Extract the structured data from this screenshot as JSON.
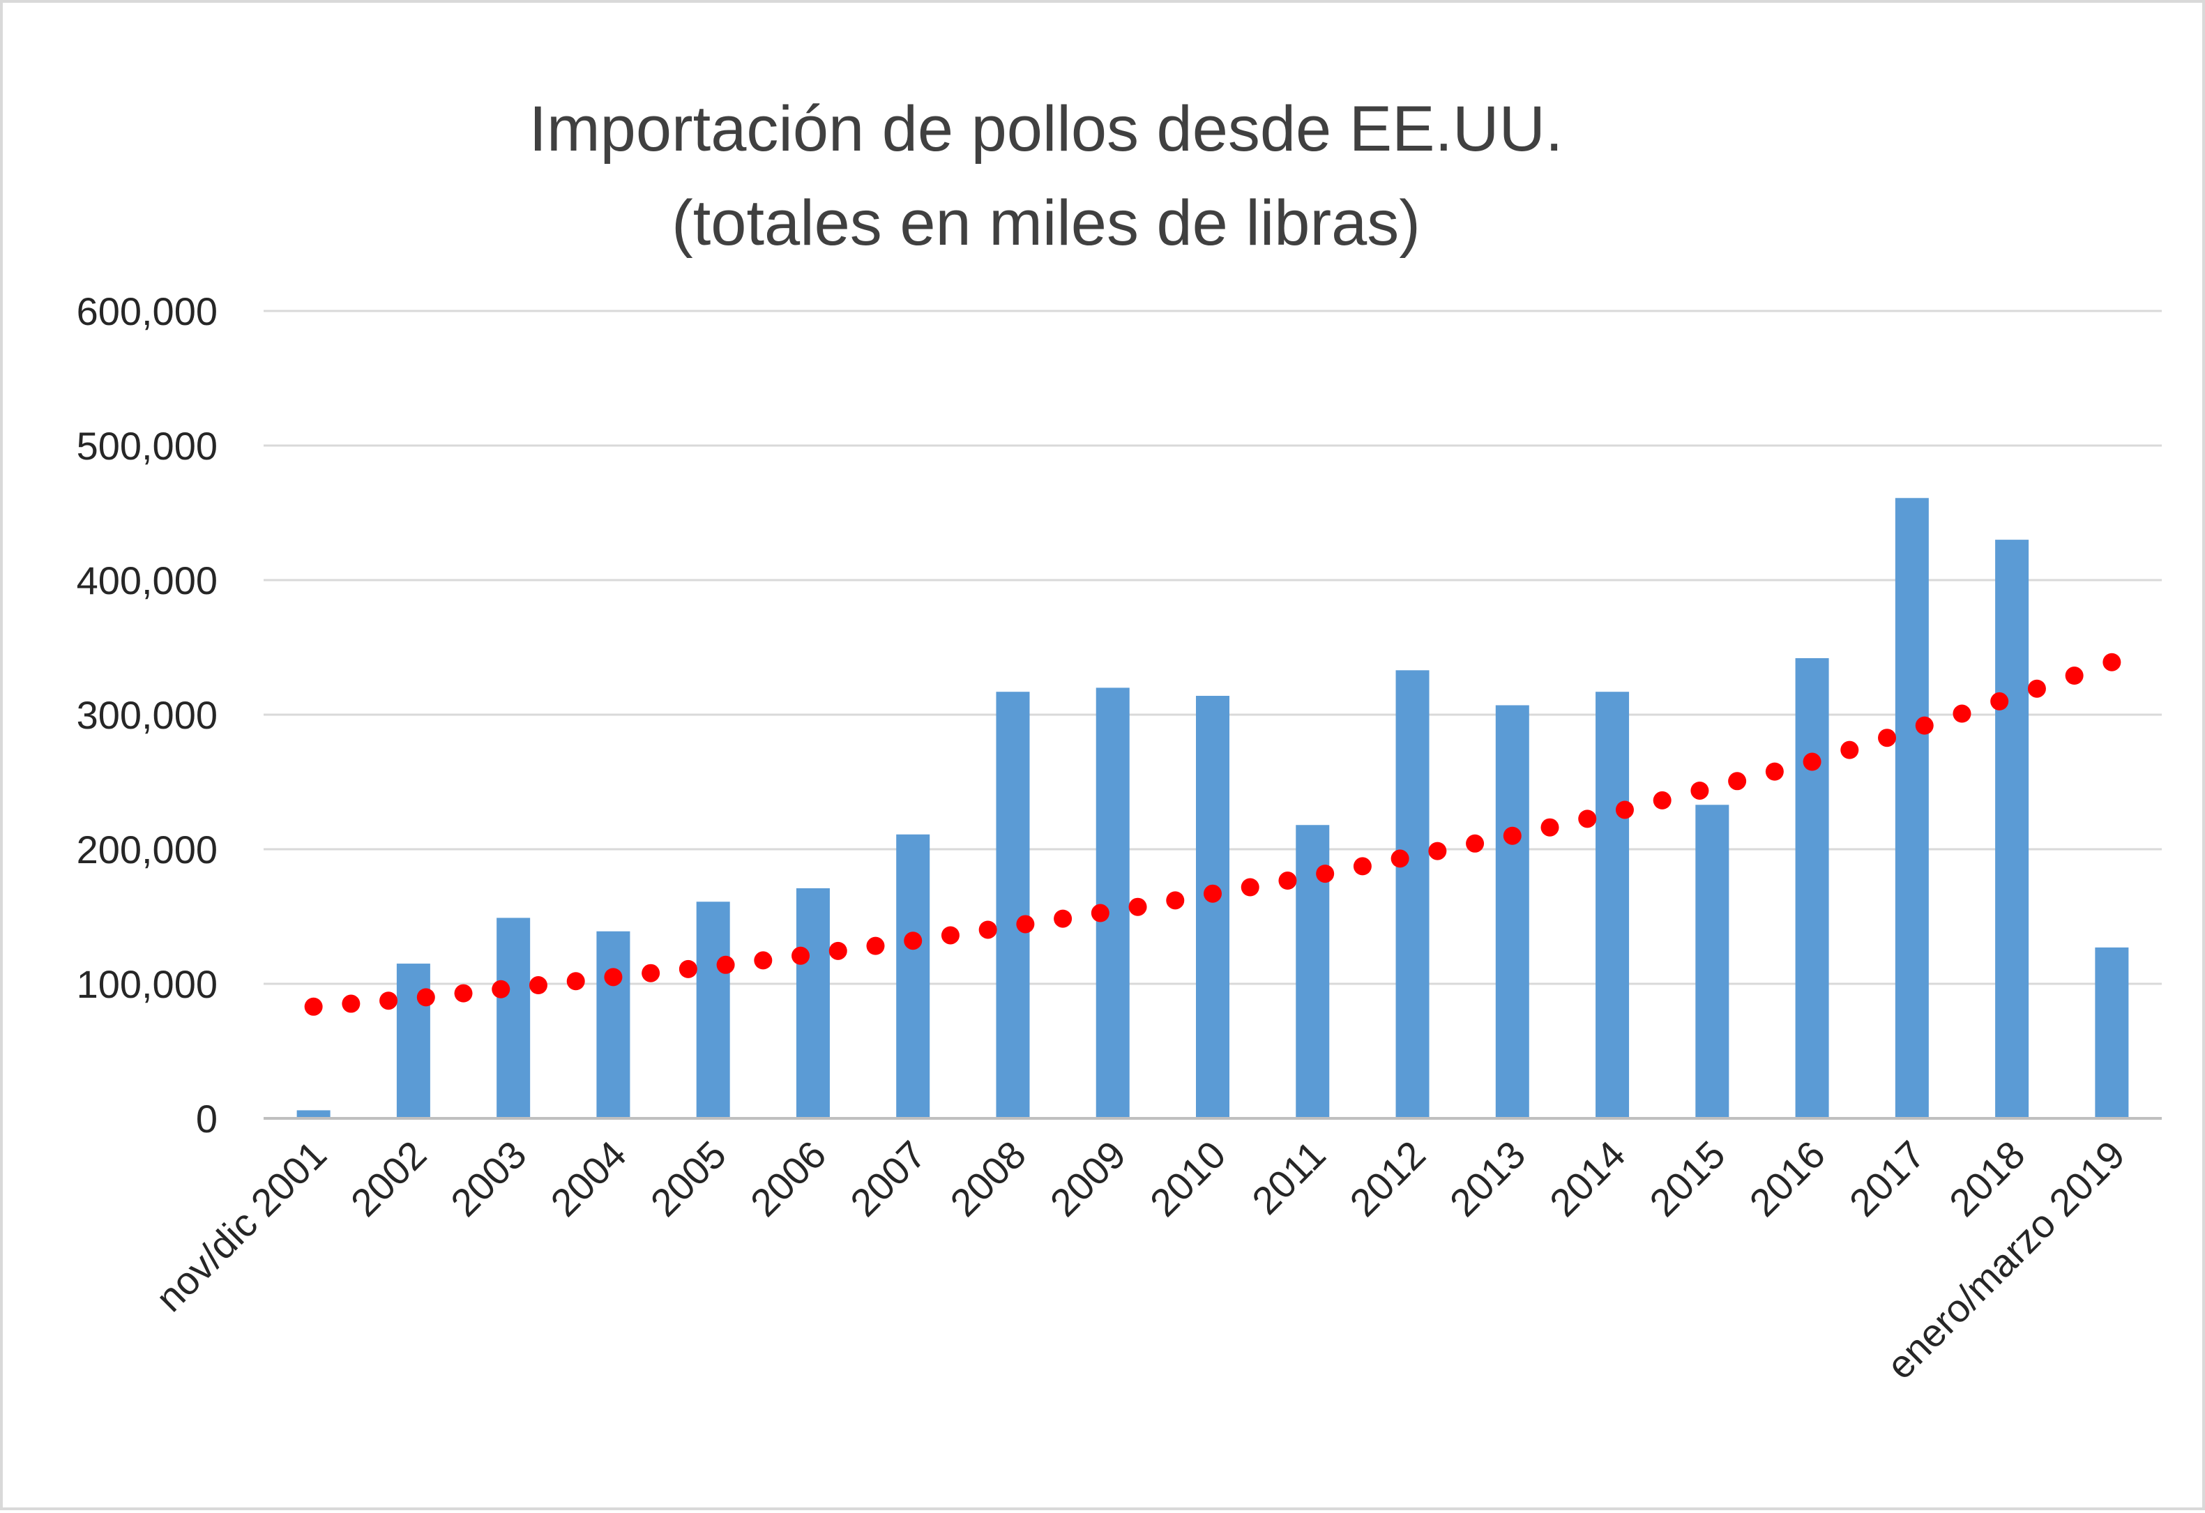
{
  "chart_data": {
    "type": "bar",
    "title": "Importación de pollos desde EE.UU.",
    "subtitle": "(totales en  miles de libras)",
    "categories": [
      "nov/dic 2001",
      "2002",
      "2003",
      "2004",
      "2005",
      "2006",
      "2007",
      "2008",
      "2009",
      "2010",
      "2011",
      "2012",
      "2013",
      "2014",
      "2015",
      "2016",
      "2017",
      "2018",
      "enero/marzo 2019"
    ],
    "series": [
      {
        "values": [
          6000,
          115000,
          149000,
          139000,
          161000,
          171000,
          211000,
          317000,
          320000,
          314000,
          218000,
          333000,
          307000,
          317000,
          233000,
          342000,
          461000,
          430000,
          127000
        ],
        "color": "#5b9bd5"
      }
    ],
    "trendline": {
      "type": "exponential",
      "style": "dotted",
      "color": "#ff0000",
      "values": [
        83000,
        89000,
        97000,
        105000,
        113000,
        122000,
        132000,
        143000,
        154000,
        167000,
        180000,
        195000,
        210000,
        227000,
        246000,
        265000,
        289000,
        313000,
        339000
      ]
    },
    "yticks": [
      "0",
      "100,000",
      "200,000",
      "300,000",
      "400,000",
      "500,000",
      "600,000"
    ],
    "ylim": [
      0,
      600000
    ],
    "grid": true,
    "legend": "none",
    "colors": {
      "bar": "#5b9bd5",
      "trend": "#ff0000",
      "grid": "#d9d9d9",
      "text": "#404040"
    }
  }
}
